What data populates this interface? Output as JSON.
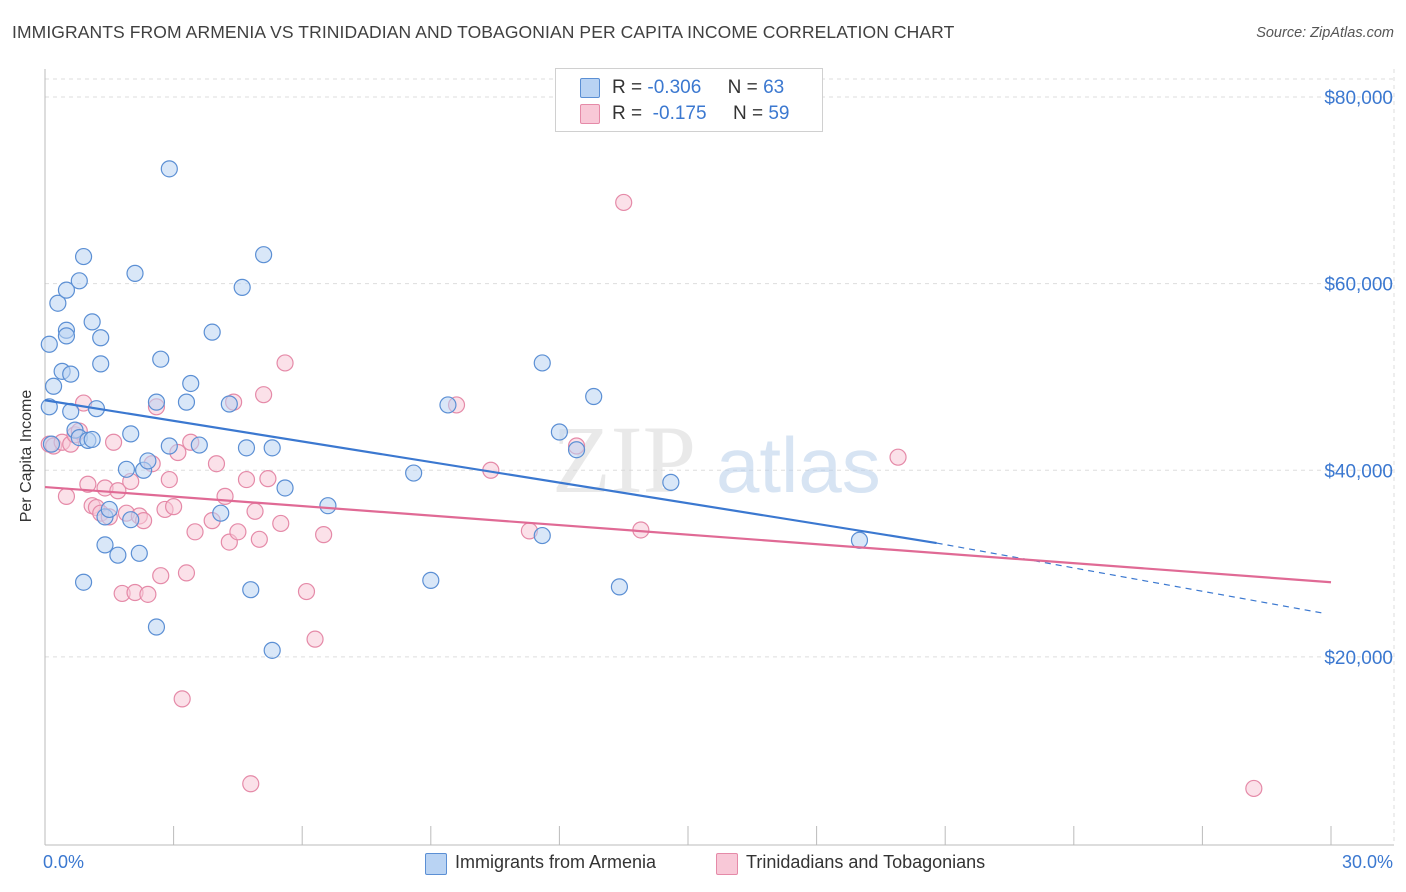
{
  "title": "IMMIGRANTS FROM ARMENIA VS TRINIDADIAN AND TOBAGONIAN PER CAPITA INCOME CORRELATION CHART",
  "source": "Source: ZipAtlas.com",
  "legend_top": {
    "rows": [
      {
        "r_label": "R =",
        "r_value": "-0.306",
        "n_label": "N =",
        "n_value": "63"
      },
      {
        "r_label": "R =",
        "r_value": "-0.175",
        "n_label": "N =",
        "n_value": "59"
      }
    ]
  },
  "legend_bottom": {
    "series_a": "Immigrants from Armenia",
    "series_b": "Trinidadians and Tobagonians"
  },
  "x_axis": {
    "min_label": "0.0%",
    "max_label": "30.0%"
  },
  "colors": {
    "blue": "#3b78d0",
    "blue_fill": "#b9d3f3",
    "blue_stroke": "#5b8fd4",
    "pink": "#e06a95",
    "pink_fill": "#f8c8d7",
    "pink_stroke": "#e58aa8",
    "grid": "#dddddd"
  },
  "watermark": {
    "part1": "ZIP",
    "part2": "atlas"
  },
  "chart_data": {
    "type": "scatter",
    "xlabel": "",
    "ylabel": "Per Capita Income",
    "xlim": [
      0,
      30
    ],
    "ylim": [
      0,
      83000
    ],
    "y_ticks": [
      20000,
      40000,
      60000,
      80000
    ],
    "y_tick_labels": [
      "$20,000",
      "$40,000",
      "$60,000",
      "$80,000"
    ],
    "x_tick_labels": [
      "0.0%",
      "30.0%"
    ],
    "grid": true,
    "series": [
      {
        "name": "Immigrants from Armenia",
        "color": "#3b78d0",
        "r": -0.306,
        "n": 63,
        "trend": {
          "x0": 0,
          "y0": 47500,
          "x1": 20.8,
          "y1": 32200,
          "dash_x1": 29.8,
          "dash_y1": 24700
        },
        "points": [
          [
            0.1,
            46800
          ],
          [
            0.1,
            53500
          ],
          [
            0.2,
            49000
          ],
          [
            0.3,
            57900
          ],
          [
            0.4,
            50600
          ],
          [
            0.5,
            55000
          ],
          [
            0.5,
            54400
          ],
          [
            0.5,
            59300
          ],
          [
            0.6,
            46300
          ],
          [
            0.6,
            50300
          ],
          [
            0.7,
            44300
          ],
          [
            0.8,
            43500
          ],
          [
            0.8,
            60300
          ],
          [
            0.9,
            62900
          ],
          [
            0.9,
            28000
          ],
          [
            1.0,
            43200
          ],
          [
            1.1,
            55900
          ],
          [
            1.1,
            43300
          ],
          [
            1.2,
            46600
          ],
          [
            1.3,
            54200
          ],
          [
            1.3,
            51400
          ],
          [
            1.4,
            35000
          ],
          [
            1.4,
            32000
          ],
          [
            1.5,
            35800
          ],
          [
            1.7,
            30900
          ],
          [
            1.9,
            40100
          ],
          [
            2.0,
            43900
          ],
          [
            2.0,
            34700
          ],
          [
            2.1,
            61100
          ],
          [
            2.2,
            31100
          ],
          [
            2.3,
            40000
          ],
          [
            2.4,
            41000
          ],
          [
            2.6,
            23200
          ],
          [
            2.6,
            47300
          ],
          [
            2.7,
            51900
          ],
          [
            2.9,
            42600
          ],
          [
            2.9,
            72300
          ],
          [
            3.3,
            47300
          ],
          [
            3.4,
            49300
          ],
          [
            3.6,
            42700
          ],
          [
            3.9,
            54800
          ],
          [
            4.1,
            35400
          ],
          [
            4.3,
            47100
          ],
          [
            4.6,
            59600
          ],
          [
            4.7,
            42400
          ],
          [
            4.8,
            27200
          ],
          [
            5.1,
            63100
          ],
          [
            5.3,
            20700
          ],
          [
            5.3,
            42400
          ],
          [
            5.6,
            38100
          ],
          [
            6.6,
            36200
          ],
          [
            8.6,
            39700
          ],
          [
            9.0,
            28200
          ],
          [
            9.4,
            47000
          ],
          [
            11.6,
            51500
          ],
          [
            11.6,
            33000
          ],
          [
            12.0,
            44100
          ],
          [
            12.4,
            42200
          ],
          [
            12.8,
            47900
          ],
          [
            13.4,
            27500
          ],
          [
            14.6,
            38700
          ],
          [
            19.0,
            32500
          ],
          [
            0.15,
            42800
          ]
        ]
      },
      {
        "name": "Trinidadians and Tobagonians",
        "color": "#e06a95",
        "r": -0.175,
        "n": 59,
        "trend": {
          "x0": 0,
          "y0": 38200,
          "x1": 30,
          "y1": 28000
        },
        "points": [
          [
            0.1,
            42800
          ],
          [
            0.2,
            42600
          ],
          [
            0.4,
            43000
          ],
          [
            0.5,
            37200
          ],
          [
            0.6,
            42800
          ],
          [
            0.7,
            43800
          ],
          [
            0.8,
            44200
          ],
          [
            0.9,
            47200
          ],
          [
            1.0,
            38500
          ],
          [
            1.1,
            36200
          ],
          [
            1.2,
            36000
          ],
          [
            1.3,
            35400
          ],
          [
            1.4,
            38100
          ],
          [
            1.5,
            35000
          ],
          [
            1.6,
            43000
          ],
          [
            1.7,
            37800
          ],
          [
            1.8,
            26800
          ],
          [
            1.9,
            35400
          ],
          [
            2.0,
            38800
          ],
          [
            2.1,
            26900
          ],
          [
            2.2,
            35100
          ],
          [
            2.3,
            34600
          ],
          [
            2.4,
            26700
          ],
          [
            2.5,
            40700
          ],
          [
            2.6,
            46800
          ],
          [
            2.7,
            28700
          ],
          [
            2.8,
            35800
          ],
          [
            2.9,
            39000
          ],
          [
            3.0,
            36100
          ],
          [
            3.1,
            41900
          ],
          [
            3.2,
            15500
          ],
          [
            3.3,
            29000
          ],
          [
            3.4,
            43000
          ],
          [
            3.5,
            33400
          ],
          [
            3.9,
            34600
          ],
          [
            4.0,
            40700
          ],
          [
            4.2,
            37200
          ],
          [
            4.3,
            32300
          ],
          [
            4.4,
            47300
          ],
          [
            4.5,
            33400
          ],
          [
            4.7,
            39000
          ],
          [
            4.8,
            6400
          ],
          [
            4.9,
            35600
          ],
          [
            5.0,
            32600
          ],
          [
            5.1,
            48100
          ],
          [
            5.2,
            39100
          ],
          [
            5.5,
            34300
          ],
          [
            5.6,
            51500
          ],
          [
            6.1,
            27000
          ],
          [
            6.3,
            21900
          ],
          [
            6.5,
            33100
          ],
          [
            9.6,
            47000
          ],
          [
            10.4,
            40000
          ],
          [
            11.3,
            33500
          ],
          [
            12.4,
            42600
          ],
          [
            13.5,
            68700
          ],
          [
            13.9,
            33600
          ],
          [
            19.9,
            41400
          ],
          [
            28.2,
            5900
          ]
        ]
      }
    ]
  }
}
